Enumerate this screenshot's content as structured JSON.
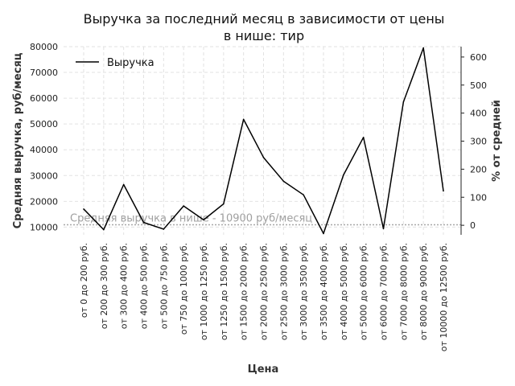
{
  "chart_data": {
    "type": "line",
    "title_line1": "Выручка за последний месяц в зависимости от цены",
    "title_line2": "в нише: тир",
    "xlabel": "Цена",
    "ylabel": "Средняя выручка, руб/месяц",
    "y2label": "% от средней",
    "categories": [
      "от 0 до 200 руб.",
      "от 200 до 300 руб.",
      "от 300 до 400 руб.",
      "от 400 до 500 руб.",
      "от 500 до 750 руб.",
      "от 750 до 1000 руб.",
      "от 1000 до 1250 руб.",
      "от 1250 до 1500 руб.",
      "от 1500 до 2000 руб.",
      "от 2000 до 2500 руб.",
      "от 2500 до 3000 руб.",
      "от 3000 до 3500 руб.",
      "от 3500 до 4000 руб.",
      "от 4000 до 5000 руб.",
      "от 5000 до 6000 руб.",
      "от 6000 до 7000 руб.",
      "от 7000 до 8000 руб.",
      "от 8000 до 9000 руб.",
      "от 10000 до 12500 руб."
    ],
    "series": [
      {
        "name": "Выручка",
        "color": "#000000",
        "values": [
          17000,
          9000,
          26500,
          11800,
          9200,
          18200,
          12800,
          19000,
          51800,
          37000,
          27800,
          22500,
          7500,
          30200,
          44800,
          9400,
          58500,
          79500,
          24000
        ]
      }
    ],
    "yticks": [
      10000,
      20000,
      30000,
      40000,
      50000,
      60000,
      70000,
      80000
    ],
    "y2ticks": [
      0,
      100,
      200,
      300,
      400,
      500,
      600
    ],
    "ylim": [
      7000,
      80000
    ],
    "y2lim": [
      -34,
      637
    ],
    "average": {
      "value": 10900,
      "label": "Средняя выручка в нише - 10900 руб/месяц",
      "color": "#a8a8a8"
    },
    "grid": true,
    "legend_position": "top-left"
  }
}
